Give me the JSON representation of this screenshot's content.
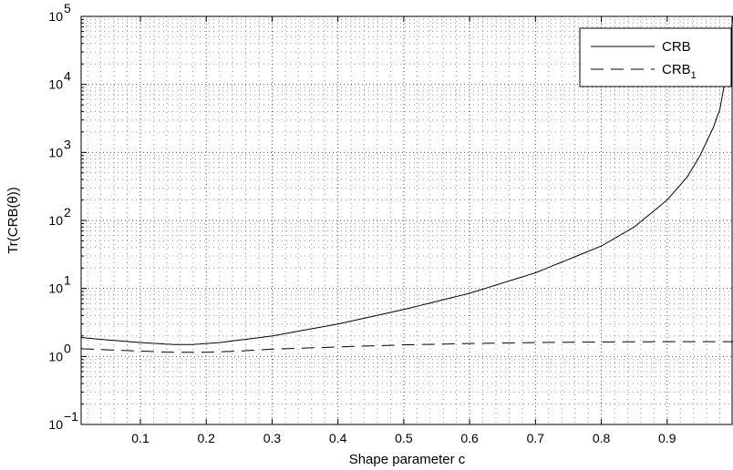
{
  "chart_data": {
    "type": "line",
    "title": "",
    "xlabel": "Shape parameter c",
    "ylabel": "Tr(CRB(θ))",
    "xlim": [
      0.01,
      1.0
    ],
    "ylim": [
      0.1,
      100000
    ],
    "yscale": "log",
    "grid": "dotted major and minor",
    "legend": {
      "position": "top-right",
      "entries": [
        "CRB",
        "CRB_1"
      ]
    },
    "xticks": [
      "0.1",
      "0.2",
      "0.3",
      "0.4",
      "0.5",
      "0.6",
      "0.7",
      "0.8",
      "0.9"
    ],
    "xtick_values": [
      0.1,
      0.2,
      0.3,
      0.4,
      0.5,
      0.6,
      0.7,
      0.8,
      0.9
    ],
    "yticks": [
      {
        "base": "10",
        "exp": "−1",
        "value": 0.1
      },
      {
        "base": "10",
        "exp": "0",
        "value": 1
      },
      {
        "base": "10",
        "exp": "1",
        "value": 10
      },
      {
        "base": "10",
        "exp": "2",
        "value": 100
      },
      {
        "base": "10",
        "exp": "3",
        "value": 1000
      },
      {
        "base": "10",
        "exp": "4",
        "value": 10000
      },
      {
        "base": "10",
        "exp": "5",
        "value": 100000
      }
    ],
    "series": [
      {
        "name": "CRB",
        "style": "solid",
        "color": "#000000",
        "x": [
          0.01,
          0.05,
          0.1,
          0.15,
          0.18,
          0.22,
          0.3,
          0.4,
          0.5,
          0.6,
          0.7,
          0.8,
          0.85,
          0.9,
          0.93,
          0.95,
          0.97,
          0.98,
          0.99,
          0.995,
          1.0
        ],
        "y": [
          1.9,
          1.75,
          1.6,
          1.5,
          1.5,
          1.6,
          2.0,
          3.0,
          4.9,
          8.5,
          17,
          42,
          80,
          200,
          430,
          900,
          2300,
          4300,
          15000,
          40000,
          100000
        ]
      },
      {
        "name": "CRB_1",
        "style": "dashed",
        "color": "#000000",
        "x": [
          0.01,
          0.05,
          0.1,
          0.15,
          0.2,
          0.25,
          0.3,
          0.4,
          0.5,
          0.6,
          0.7,
          0.8,
          0.9,
          1.0
        ],
        "y": [
          1.3,
          1.25,
          1.2,
          1.15,
          1.15,
          1.2,
          1.28,
          1.38,
          1.48,
          1.55,
          1.6,
          1.63,
          1.65,
          1.65
        ]
      }
    ]
  }
}
